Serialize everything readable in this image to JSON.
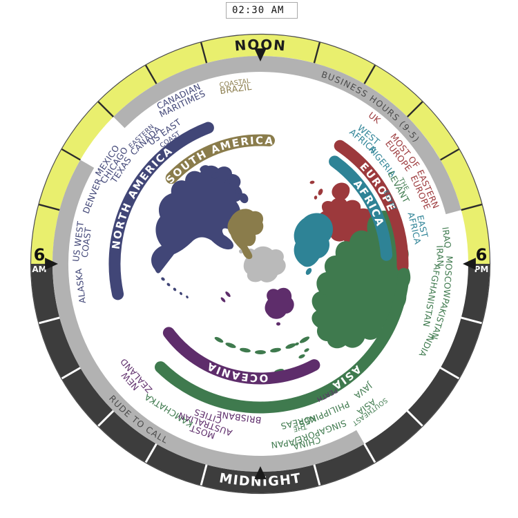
{
  "clock": {
    "time_value": "02:30 AM"
  },
  "ring": {
    "noon_label": "NOON",
    "midnight_label": "MIDNIGHT",
    "am_hour": "6",
    "am_suffix": "AM",
    "pm_hour": "6",
    "pm_suffix": "PM",
    "business_label": "BUSINESS HOURS (9-5)",
    "rude_label": "RUDE TO CALL",
    "day_color": "#E9EF6E",
    "night_color": "#3D3D3D",
    "gray_color": "#B2B2B2",
    "gray_text_color": "#4C4C4C",
    "business_arc": {
      "start": 315,
      "end": 75
    },
    "rude_arc": {
      "start": 150,
      "end": 300
    },
    "day_tick_angles": [
      285,
      300,
      315,
      330,
      345,
      15,
      30,
      45,
      60,
      75
    ],
    "night_gap_angles": [
      105,
      120,
      135,
      150,
      165,
      195,
      210,
      225,
      240,
      255
    ]
  },
  "antarctica_color": "#BABABA",
  "continents": [
    {
      "name": "NORTH AMERICA",
      "color": "#414677",
      "band": {
        "radius": 211,
        "start": 258,
        "end": 339,
        "label_angle": 299
      },
      "regions": [
        {
          "lines": [
            {
              "t": "ALASKA"
            }
          ],
          "angle": 263,
          "radius": 262
        },
        {
          "lines": [
            {
              "t": "US WEST"
            },
            {
              "t": "COAST"
            }
          ],
          "angle": 277,
          "radius": 260
        },
        {
          "lines": [
            {
              "t": "DENVER"
            }
          ],
          "angle": 292,
          "radius": 262
        },
        {
          "lines": [
            {
              "t": "MEXICO"
            },
            {
              "t": "CHICAGO"
            },
            {
              "t": "TEXAS"
            }
          ],
          "angle": 304,
          "radius": 256
        },
        {
          "lines": [
            {
              "t": "EASTERN",
              "small": true
            },
            {
              "t": "CANADA"
            }
          ],
          "angle": 317,
          "radius": 248
        },
        {
          "lines": [
            {
              "t": "US EAST"
            },
            {
              "t": "COAST",
              "small": true
            }
          ],
          "angle": 324,
          "radius": 230
        },
        {
          "lines": [
            {
              "t": "CANADIAN"
            },
            {
              "t": "MARITIMES"
            }
          ],
          "angle": 334,
          "radius": 264
        }
      ]
    },
    {
      "name": "SOUTH AMERICA",
      "color": "#8A7C4B",
      "band": {
        "radius": 179,
        "start": 314,
        "end": 4,
        "label_angle": 339
      },
      "regions": [
        {
          "lines": [
            {
              "t": "COASTAL",
              "small": true
            },
            {
              "t": "BRAZIL"
            }
          ],
          "angle": 352,
          "radius": 260
        }
      ]
    },
    {
      "name": "EUROPE",
      "color": "#9C393C",
      "band": {
        "radius": 206,
        "start": 34,
        "end": 91,
        "label_angle": 57
      },
      "regions": [
        {
          "lines": [
            {
              "t": "UK"
            }
          ],
          "angle": 38,
          "radius": 268
        },
        {
          "lines": [
            {
              "t": "MOST OF"
            },
            {
              "t": "EUROPE"
            }
          ],
          "angle": 52,
          "radius": 260
        },
        {
          "lines": [
            {
              "t": "EASTERN"
            },
            {
              "t": "EUROPE"
            }
          ],
          "angle": 66,
          "radius": 260
        }
      ]
    },
    {
      "name": "AFRICA",
      "color": "#2E8396",
      "band": {
        "radius": 183,
        "start": 36,
        "end": 86,
        "label_angle": 61
      },
      "regions": [
        {
          "lines": [
            {
              "t": "WEST"
            },
            {
              "t": "AFRICA"
            }
          ],
          "angle": 40,
          "radius": 238
        },
        {
          "lines": [
            {
              "t": "NIGERIA"
            }
          ],
          "angle": 50,
          "radius": 230
        },
        {
          "lines": [
            {
              "t": "EGYPT",
              "small": true
            }
          ],
          "angle": 64,
          "radius": 210
        },
        {
          "lines": [
            {
              "t": "EAST"
            },
            {
              "t": "AFRICA"
            }
          ],
          "angle": 77,
          "radius": 235
        }
      ]
    },
    {
      "name": "ASIA",
      "color": "#3F7A4E",
      "band": {
        "radius": 208,
        "start": 94,
        "end": 224,
        "label_angle": 143
      },
      "regions": [
        {
          "lines": [
            {
              "t": "THE",
              "small": true
            },
            {
              "t": "LEVANT"
            }
          ],
          "angle": 61,
          "radius": 233
        },
        {
          "lines": [
            {
              "t": "IRAQ"
            }
          ],
          "angle": 82,
          "radius": 272
        },
        {
          "lines": [
            {
              "t": "IRAN"
            }
          ],
          "angle": 87.5,
          "radius": 260
        },
        {
          "lines": [
            {
              "t": "MOSCOW"
            }
          ],
          "angle": 94,
          "radius": 272
        },
        {
          "lines": [
            {
              "t": "AFGHANISTAN"
            }
          ],
          "angle": 100.5,
          "radius": 252
        },
        {
          "lines": [
            {
              "t": "PAKISTAN"
            }
          ],
          "angle": 107,
          "radius": 272
        },
        {
          "lines": [
            {
              "t": "INDIA"
            }
          ],
          "angle": 116,
          "radius": 268
        },
        {
          "lines": [
            {
              "t": "SOUTHEAST",
              "small": true
            },
            {
              "t": "ASIA"
            }
          ],
          "angle": 143.5,
          "radius": 262
        },
        {
          "lines": [
            {
              "t": "JAVA"
            }
          ],
          "angle": 141,
          "radius": 236
        },
        {
          "lines": [
            {
              "t": "PHILIPPINES"
            }
          ],
          "angle": 157,
          "radius": 236
        },
        {
          "lines": [
            {
              "t": "SINGAPORE"
            }
          ],
          "angle": 160,
          "radius": 258
        },
        {
          "lines": [
            {
              "t": "CHINA"
            }
          ],
          "angle": 165.5,
          "radius": 268
        },
        {
          "lines": [
            {
              "t": "THE",
              "small": true
            },
            {
              "t": "KOREAS"
            }
          ],
          "angle": 166.5,
          "radius": 240
        },
        {
          "lines": [
            {
              "t": "JAPAN"
            }
          ],
          "angle": 172.5,
          "radius": 262
        },
        {
          "lines": [
            {
              "t": "KAMCHATKA"
            }
          ],
          "angle": 212,
          "radius": 250
        }
      ]
    },
    {
      "name": "OCEANIA",
      "color": "#5E2D6B",
      "band": {
        "radius": 166,
        "start": 152,
        "end": 233,
        "label_angle": 192
      },
      "regions": [
        {
          "lines": [
            {
              "t": "PERTH",
              "small": true
            }
          ],
          "angle": 153,
          "radius": 214
        },
        {
          "lines": [
            {
              "t": "BRISBANE"
            }
          ],
          "angle": 188,
          "radius": 224
        },
        {
          "lines": [
            {
              "t": "MOST"
            },
            {
              "t": "AUSTRALIAN"
            },
            {
              "t": "CITIES"
            }
          ],
          "angle": 199,
          "radius": 246
        },
        {
          "lines": [
            {
              "t": "NEW"
            },
            {
              "t": "ZEALAND"
            }
          ],
          "angle": 228,
          "radius": 248
        }
      ]
    }
  ]
}
